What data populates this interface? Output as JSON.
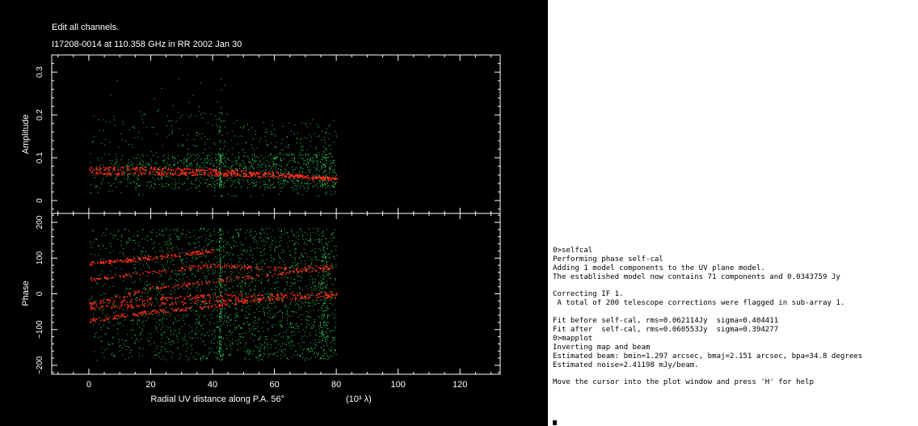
{
  "plot": {
    "heading": "Edit all channels.",
    "source_line": "I17208-0014 at 110.358 GHz in RR  2002 Jan 30",
    "colors": {
      "background": "#000000",
      "axes": "#ffffff",
      "observed": "#33dd66",
      "model": "#ff2a1a"
    },
    "x_axis": {
      "label": "Radial UV distance along P.A. 56°",
      "unit": "(10³ λ)",
      "range": [
        -12,
        133
      ],
      "ticks": [
        "0",
        "20",
        "40",
        "60",
        "80",
        "100",
        "120"
      ]
    },
    "amplitude_panel": {
      "ylabel": "Amplitude",
      "range": [
        -0.03,
        0.34
      ],
      "ticks": [
        "0",
        "0.1",
        "0.2",
        "0.3"
      ]
    },
    "phase_panel": {
      "ylabel": "Phase",
      "range": [
        -225,
        225
      ],
      "ticks": [
        "−200",
        "−100",
        "0",
        "100",
        "200"
      ]
    }
  },
  "chart_data": [
    {
      "type": "scatter",
      "panel": "amplitude",
      "xlabel": "Radial UV distance along P.A. 56°  (10³ λ)",
      "ylabel": "Amplitude",
      "xlim": [
        -12,
        133
      ],
      "ylim": [
        -0.03,
        0.34
      ],
      "grid": false,
      "series": [
        {
          "role": "observed",
          "color": "#33dd66",
          "x_range": [
            0,
            80
          ],
          "y_range": [
            0.01,
            0.21
          ],
          "outliers_max": 0.3
        },
        {
          "role": "model",
          "color": "#ff2a1a",
          "curves": [
            {
              "x": [
                0,
                20,
                40,
                60,
                80
              ],
              "y": [
                0.075,
                0.075,
                0.07,
                0.063,
                0.05
              ]
            },
            {
              "x": [
                0,
                20,
                40,
                60,
                80
              ],
              "y": [
                0.065,
                0.064,
                0.062,
                0.058,
                0.05
              ]
            }
          ]
        }
      ]
    },
    {
      "type": "scatter",
      "panel": "phase",
      "xlabel": "Radial UV distance along P.A. 56°  (10³ λ)",
      "ylabel": "Phase",
      "xlim": [
        -12,
        133
      ],
      "ylim": [
        -225,
        225
      ],
      "grid": false,
      "series": [
        {
          "role": "observed",
          "color": "#33dd66",
          "x_range": [
            0,
            80
          ],
          "y_range": [
            -185,
            185
          ]
        },
        {
          "role": "model",
          "color": "#ff2a1a",
          "curves": [
            {
              "x": [
                0,
                20,
                40
              ],
              "y": [
                85,
                100,
                120
              ]
            },
            {
              "x": [
                0,
                20,
                40,
                60,
                78
              ],
              "y": [
                40,
                60,
                80,
                70,
                75
              ]
            },
            {
              "x": [
                0,
                20,
                40,
                60,
                80
              ],
              "y": [
                -30,
                15,
                35,
                55,
                75
              ]
            },
            {
              "x": [
                0,
                20,
                40,
                60,
                80
              ],
              "y": [
                -25,
                -15,
                -5,
                -5,
                2
              ]
            },
            {
              "x": [
                0,
                20,
                40,
                60,
                80
              ],
              "y": [
                -40,
                -30,
                -20,
                -15,
                -5
              ]
            },
            {
              "x": [
                0,
                20,
                40,
                60
              ],
              "y": [
                -75,
                -50,
                -35,
                -10
              ]
            }
          ]
        }
      ]
    }
  ],
  "terminal": {
    "lines": [
      "0>selfcal",
      "Performing phase self-cal",
      "Adding 1 model components to the UV plane model.",
      "The established model now contains 71 components and 0.0343759 Jy",
      "",
      "Correcting IF 1.",
      " A total of 200 telescope corrections were flagged in sub-array 1.",
      "",
      "Fit before self-cal, rms=0.062114Jy  sigma=0.404411",
      "Fit after  self-cal, rms=0.060553Jy  sigma=0.394277",
      "0>mapplot",
      "Inverting map and beam",
      "Estimated beam: bmin=1.297 arcsec, bmaj=2.151 arcsec, bpa=34.8 degrees",
      "Estimated noise=2.41198 mJy/beam.",
      "",
      "Move the cursor into the plot window and press 'H' for help"
    ]
  }
}
